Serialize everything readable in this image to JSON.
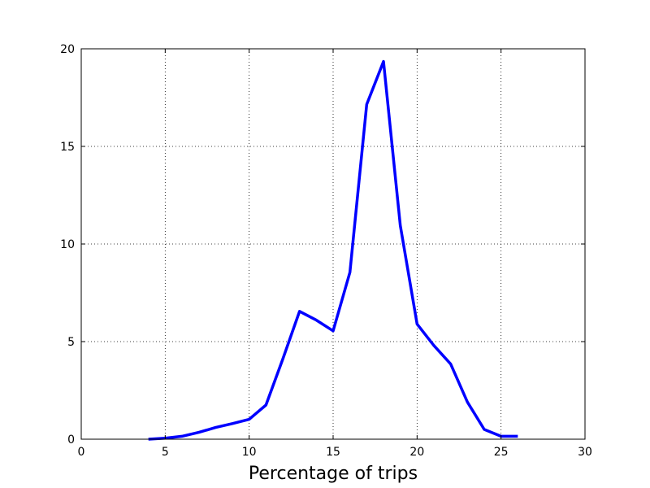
{
  "chart_data": {
    "type": "line",
    "title": "",
    "xlabel": "Percentage of trips",
    "ylabel": "",
    "xlim": [
      0,
      30
    ],
    "ylim": [
      0,
      20
    ],
    "xticks": [
      0,
      5,
      10,
      15,
      20,
      25,
      30
    ],
    "yticks": [
      0,
      5,
      10,
      15,
      20
    ],
    "grid": true,
    "line_color": "#0000ff",
    "series": [
      {
        "x": [
          4,
          5,
          6,
          7,
          8,
          9,
          10,
          11,
          12,
          13,
          14,
          15,
          16,
          17,
          18,
          19,
          20,
          21,
          22,
          23,
          24,
          25,
          26
        ],
        "values": [
          0.0,
          0.05,
          0.15,
          0.35,
          0.6,
          0.8,
          1.02,
          1.75,
          4.1,
          6.55,
          6.1,
          5.55,
          8.55,
          17.15,
          19.35,
          10.95,
          5.9,
          4.8,
          3.85,
          1.9,
          0.5,
          0.15,
          0.15
        ]
      }
    ]
  }
}
